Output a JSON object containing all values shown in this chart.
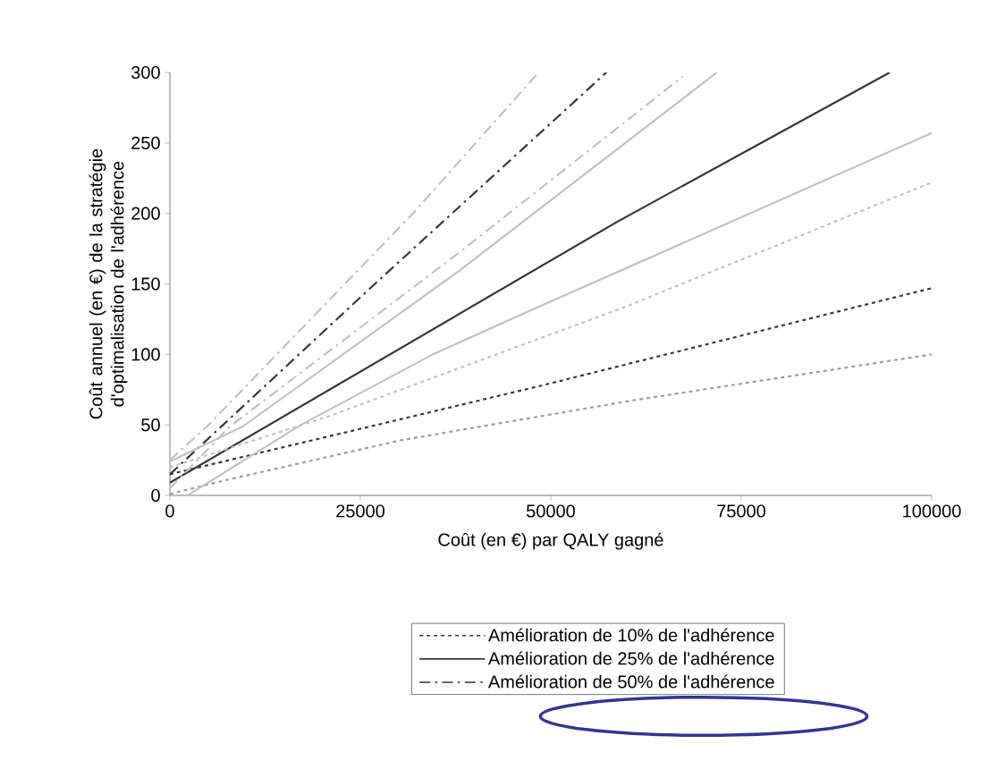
{
  "chart_data": {
    "type": "line",
    "xlabel": "Coût (en €) par QALY gagné",
    "ylabel": "Coût annuel (en €) de la stratégie d'optimalisation de l'adhérence",
    "xlim": [
      0,
      100000
    ],
    "ylim": [
      0,
      300
    ],
    "xticks": [
      0,
      25000,
      50000,
      75000,
      100000
    ],
    "yticks": [
      0,
      50,
      100,
      150,
      200,
      250,
      300
    ],
    "grid": false,
    "legend": "bottom",
    "series": [
      {
        "name": "Amélioration de 10% de l'adhérence",
        "color": "#333333",
        "line_style": "dotted",
        "x": [
          0,
          48100,
          100000
        ],
        "values": [
          15,
          77,
          147
        ]
      },
      {
        "name": "Amélioration de 25% de l'adhérence",
        "color": "#333333",
        "line_style": "solid",
        "x": [
          0,
          58700,
          94500
        ],
        "values": [
          9,
          194,
          300
        ]
      },
      {
        "name": "Amélioration de 50% de l'adhérence",
        "color": "#333333",
        "line_style": "dashdot",
        "x": [
          0,
          26900,
          57300
        ],
        "values": [
          15,
          150,
          300
        ]
      },
      {
        "color": "#999999",
        "line_style": "dotted",
        "x": [
          0,
          6700,
          30200,
          60300,
          100000
        ],
        "values": [
          1,
          10,
          39,
          67,
          100
        ]
      },
      {
        "color": "#c0c0c0",
        "line_style": "dotted",
        "x": [
          0,
          20800,
          59900,
          100000
        ],
        "values": [
          20,
          56,
          134,
          222
        ]
      },
      {
        "color": "#c0c0c0",
        "line_style": "solid",
        "x": [
          2300,
          17200,
          34500,
          48100,
          100000
        ],
        "values": [
          0,
          50,
          100,
          133,
          257
        ]
      },
      {
        "color": "#c0c0c0",
        "line_style": "solid",
        "x": [
          0,
          9600,
          37900,
          71800
        ],
        "values": [
          24,
          49,
          159,
          300
        ]
      },
      {
        "color": "#c0c0c0",
        "line_style": "dashdot",
        "x": [
          0,
          7900,
          37900,
          67300
        ],
        "values": [
          5,
          49,
          172,
          297
        ]
      },
      {
        "color": "#c0c0c0",
        "line_style": "dashdot",
        "x": [
          0,
          4900,
          31900,
          48400
        ],
        "values": [
          25,
          49,
          200,
          300
        ]
      }
    ]
  }
}
